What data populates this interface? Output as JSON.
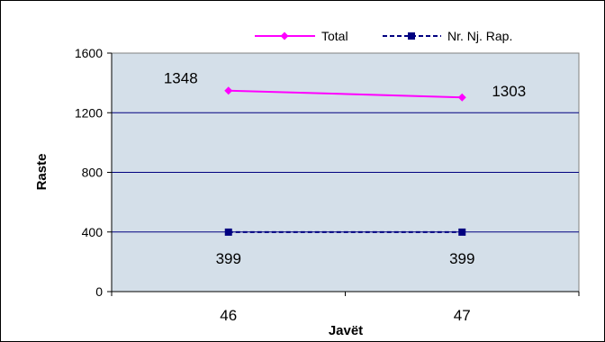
{
  "chart_data": {
    "type": "line",
    "title": "",
    "xlabel": "Javët",
    "ylabel": "Raste",
    "categories": [
      "46",
      "47"
    ],
    "ylim": [
      0,
      1600
    ],
    "yticks": [
      0,
      400,
      800,
      1200,
      1600
    ],
    "ytick_labels": [
      "0",
      "400",
      "800",
      "1200",
      "1600"
    ],
    "grid": true,
    "legend_position": "top-right",
    "plot_background": "#d4dfe9",
    "series": [
      {
        "name": "Total",
        "values": [
          1348,
          1303
        ],
        "value_labels": [
          "1348",
          "1303"
        ],
        "color": "#ff00ff",
        "line_style": "solid",
        "marker": "diamond"
      },
      {
        "name": "Nr. Nj. Rap.",
        "values": [
          399,
          399
        ],
        "value_labels": [
          "399",
          "399"
        ],
        "color": "#000080",
        "line_style": "dashed",
        "marker": "square"
      }
    ]
  }
}
